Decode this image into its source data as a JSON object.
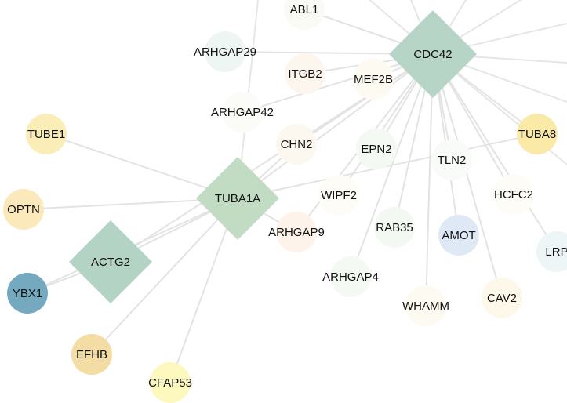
{
  "network": {
    "hubs": [
      {
        "id": "CDC42",
        "label": "CDC42",
        "color": "#b7d5c7"
      },
      {
        "id": "TUBA1A",
        "label": "TUBA1A",
        "color": "#c2dcc4"
      },
      {
        "id": "ACTG2",
        "label": "ACTG2",
        "color": "#b3d3c5"
      }
    ],
    "nodes": [
      {
        "id": "ABL1",
        "label": "ABL1",
        "color": "#fbfbf5"
      },
      {
        "id": "ARHGAP29",
        "label": "ARHGAP29",
        "color": "#eef6f4"
      },
      {
        "id": "ITGB2",
        "label": "ITGB2",
        "color": "#fdf6ef"
      },
      {
        "id": "MEF2B",
        "label": "MEF2B",
        "color": "#fdfbf1"
      },
      {
        "id": "ARHGAP42",
        "label": "ARHGAP42",
        "color": "#fbfcf7"
      },
      {
        "id": "TUBE1",
        "label": "TUBE1",
        "color": "#fbedb8"
      },
      {
        "id": "CHN2",
        "label": "CHN2",
        "color": "#fdf8ef"
      },
      {
        "id": "EPN2",
        "label": "EPN2",
        "color": "#f4f9f4"
      },
      {
        "id": "TLN2",
        "label": "TLN2",
        "color": "#f8fbf8"
      },
      {
        "id": "TUBA8",
        "label": "TUBA8",
        "color": "#fbe9a7"
      },
      {
        "id": "OPTN",
        "label": "OPTN",
        "color": "#fbe9bc"
      },
      {
        "id": "WIPF2",
        "label": "WIPF2",
        "color": "#fdfcf6"
      },
      {
        "id": "HCFC2",
        "label": "HCFC2",
        "color": "#fdfcf6"
      },
      {
        "id": "ARHGAP9",
        "label": "ARHGAP9",
        "color": "#fdf3ea"
      },
      {
        "id": "RAB35",
        "label": "RAB35",
        "color": "#f3f8f2"
      },
      {
        "id": "AMOT",
        "label": "AMOT",
        "color": "#dfe9f5"
      },
      {
        "id": "LRP",
        "label": "LRP",
        "color": "#eef5f6"
      },
      {
        "id": "YBX1",
        "label": "YBX1",
        "color": "#74a9bf"
      },
      {
        "id": "ARHGAP4",
        "label": "ARHGAP4",
        "color": "#f5f9f3"
      },
      {
        "id": "WHAMM",
        "label": "WHAMM",
        "color": "#fdfaf2"
      },
      {
        "id": "CAV2",
        "label": "CAV2",
        "color": "#fdf8ea"
      },
      {
        "id": "EFHB",
        "label": "EFHB",
        "color": "#f4dca5"
      },
      {
        "id": "CFAP53",
        "label": "CFAP53",
        "color": "#fcf8be"
      }
    ],
    "edges": [
      [
        "CDC42",
        "ABL1"
      ],
      [
        "CDC42",
        "ARHGAP29"
      ],
      [
        "CDC42",
        "ITGB2"
      ],
      [
        "CDC42",
        "MEF2B"
      ],
      [
        "CDC42",
        "ARHGAP42"
      ],
      [
        "CDC42",
        "CHN2"
      ],
      [
        "CDC42",
        "EPN2"
      ],
      [
        "CDC42",
        "TLN2"
      ],
      [
        "CDC42",
        "WIPF2"
      ],
      [
        "CDC42",
        "HCFC2"
      ],
      [
        "CDC42",
        "ARHGAP9"
      ],
      [
        "CDC42",
        "RAB35"
      ],
      [
        "CDC42",
        "AMOT"
      ],
      [
        "CDC42",
        "ARHGAP4"
      ],
      [
        "CDC42",
        "WHAMM"
      ],
      [
        "CDC42",
        "CAV2"
      ],
      [
        "CDC42",
        "LRP"
      ],
      [
        "CDC42",
        "TUBA8"
      ],
      [
        "CDC42",
        "TUBA1A"
      ],
      [
        "CDC42",
        "ACTG2"
      ],
      [
        "TUBA1A",
        "TUBE1"
      ],
      [
        "TUBA1A",
        "OPTN"
      ],
      [
        "TUBA1A",
        "TUBA8"
      ],
      [
        "TUBA1A",
        "ACTG2"
      ],
      [
        "TUBA1A",
        "YBX1"
      ],
      [
        "TUBA1A",
        "EFHB"
      ],
      [
        "TUBA1A",
        "CFAP53"
      ],
      [
        "TUBA1A",
        "CHN2"
      ],
      [
        "TUBA1A",
        "ARHGAP9"
      ],
      [
        "ACTG2",
        "YBX1"
      ]
    ]
  }
}
